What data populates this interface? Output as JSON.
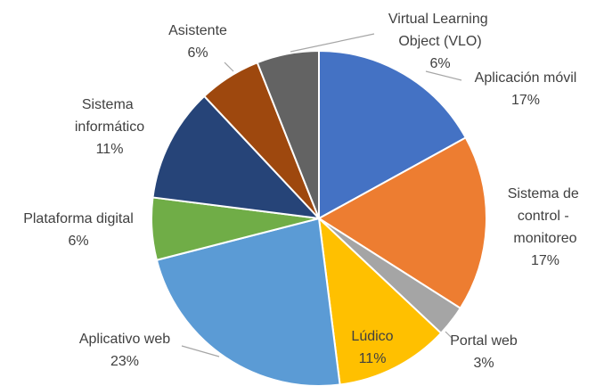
{
  "chart_data": {
    "type": "pie",
    "categories": [
      "Aplicación móvil",
      "Sistema de control - monitoreo",
      "Portal web",
      "Lúdico",
      "Aplicativo web",
      "Plataforma digital",
      "Sistema informático",
      "Asistente",
      "Virtual Learning Object (VLO)"
    ],
    "values": [
      17,
      17,
      3,
      11,
      23,
      6,
      11,
      6,
      6
    ],
    "value_labels": [
      "17%",
      "17%",
      "3%",
      "11%",
      "23%",
      "6%",
      "11%",
      "6%",
      "6%"
    ],
    "colors": [
      "#4472c4",
      "#ed7d31",
      "#a5a5a5",
      "#ffc000",
      "#5b9bd5",
      "#70ad47",
      "#264478",
      "#9e480e",
      "#636363"
    ]
  }
}
